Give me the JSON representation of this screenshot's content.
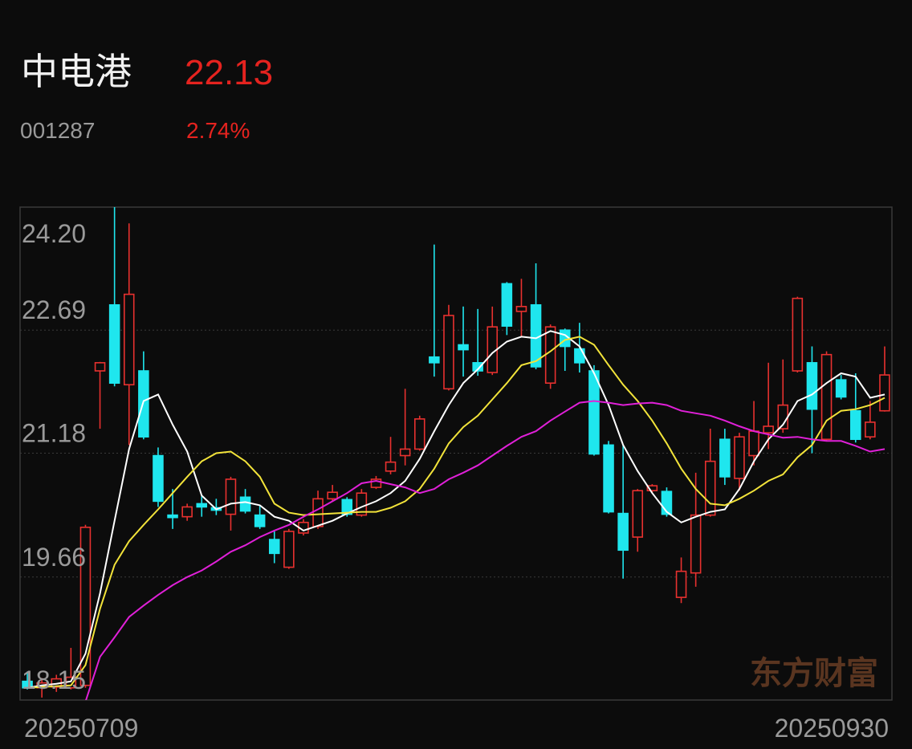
{
  "header": {
    "name": "中电港",
    "price": "22.13",
    "code": "001287",
    "change": "2.74%"
  },
  "watermark": "东方财富",
  "chart_data": {
    "type": "candlestick",
    "categories": [
      "20250709",
      null,
      null,
      null,
      null,
      null,
      null,
      null,
      null,
      null,
      null,
      null,
      null,
      null,
      null,
      null,
      null,
      null,
      null,
      null,
      null,
      null,
      null,
      null,
      null,
      null,
      null,
      null,
      null,
      null,
      null,
      null,
      null,
      null,
      null,
      null,
      null,
      null,
      null,
      null,
      null,
      null,
      null,
      null,
      null,
      null,
      null,
      null,
      null,
      null,
      null,
      null,
      null,
      null,
      null,
      null,
      null,
      null,
      null,
      "20250930"
    ],
    "open": [
      18.38,
      18.3,
      18.31,
      18.3,
      18.33,
      22.19,
      23.0,
      22.02,
      22.19,
      21.15,
      20.42,
      20.4,
      20.56,
      20.51,
      20.43,
      20.64,
      20.42,
      20.12,
      19.78,
      20.2,
      20.28,
      20.62,
      20.61,
      20.42,
      20.76,
      20.96,
      21.15,
      21.23,
      22.36,
      21.97,
      22.51,
      22.29,
      22.17,
      23.26,
      22.92,
      23.0,
      22.04,
      22.69,
      22.46,
      22.19,
      21.28,
      20.44,
      20.15,
      20.72,
      20.71,
      19.41,
      19.71,
      20.42,
      21.35,
      20.87,
      21.15,
      21.43,
      21.48,
      22.19,
      22.29,
      21.35,
      22.08,
      21.7,
      21.38,
      21.7
    ],
    "high": [
      18.5,
      18.42,
      18.46,
      18.79,
      20.3,
      22.3,
      24.2,
      24.0,
      22.43,
      21.25,
      20.74,
      20.56,
      20.67,
      20.62,
      20.89,
      20.74,
      20.54,
      20.22,
      20.25,
      20.37,
      20.72,
      20.79,
      20.64,
      20.74,
      20.9,
      21.38,
      21.97,
      21.64,
      23.74,
      23.0,
      22.98,
      22.95,
      22.98,
      23.28,
      23.32,
      23.51,
      22.76,
      22.71,
      22.78,
      22.26,
      21.33,
      21.28,
      20.74,
      20.8,
      20.76,
      19.9,
      20.94,
      21.48,
      21.48,
      21.43,
      21.82,
      22.29,
      22.33,
      23.1,
      22.49,
      22.43,
      22.14,
      22.16,
      21.82,
      22.49
    ],
    "low": [
      18.28,
      18.18,
      18.25,
      18.28,
      18.3,
      21.48,
      22.0,
      21.28,
      21.35,
      20.52,
      20.25,
      20.35,
      20.4,
      20.42,
      20.23,
      20.44,
      20.25,
      19.83,
      19.76,
      20.17,
      20.25,
      20.59,
      20.4,
      20.4,
      20.74,
      20.92,
      21.03,
      21.21,
      22.12,
      21.95,
      22.12,
      22.13,
      22.14,
      22.63,
      22.61,
      22.21,
      21.97,
      22.19,
      22.17,
      21.15,
      20.44,
      19.64,
      19.97,
      20.69,
      20.4,
      19.34,
      19.54,
      20.4,
      20.79,
      20.72,
      21.03,
      21.23,
      21.43,
      22.17,
      21.18,
      21.33,
      21.84,
      21.31,
      21.35,
      21.69
    ],
    "close": [
      18.3,
      18.36,
      18.41,
      18.43,
      20.27,
      22.29,
      22.04,
      23.13,
      21.38,
      20.59,
      20.39,
      20.52,
      20.52,
      20.48,
      20.86,
      20.47,
      20.28,
      19.95,
      20.22,
      20.33,
      20.62,
      20.7,
      20.43,
      20.69,
      20.86,
      21.07,
      21.23,
      21.6,
      22.29,
      22.87,
      22.45,
      22.19,
      22.73,
      22.74,
      22.98,
      22.24,
      22.73,
      22.49,
      22.29,
      21.17,
      20.46,
      19.99,
      20.72,
      20.78,
      20.43,
      19.73,
      20.42,
      21.08,
      20.89,
      21.38,
      21.45,
      21.51,
      21.77,
      23.08,
      21.72,
      22.39,
      21.87,
      21.35,
      21.56,
      22.14
    ],
    "up_color": "#e8312f",
    "down_color": "#1fe6ee",
    "lines": [
      {
        "color": "#ffffff",
        "values": [
          18.3,
          18.33,
          18.35,
          18.38,
          18.72,
          19.46,
          20.35,
          21.23,
          21.82,
          21.9,
          21.53,
          21.2,
          20.66,
          20.49,
          20.56,
          20.58,
          20.54,
          20.4,
          20.35,
          20.23,
          20.29,
          20.35,
          20.44,
          20.52,
          20.59,
          20.69,
          20.84,
          21.11,
          21.45,
          21.77,
          22.04,
          22.21,
          22.41,
          22.55,
          22.61,
          22.59,
          22.68,
          22.63,
          22.49,
          22.16,
          21.77,
          21.28,
          20.96,
          20.69,
          20.46,
          20.33,
          20.4,
          20.46,
          20.49,
          20.74,
          21.08,
          21.35,
          21.53,
          21.82,
          21.9,
          22.04,
          22.16,
          22.12,
          21.86,
          21.9
        ]
      },
      {
        "color": "#f2e33a",
        "values": [
          18.3,
          18.31,
          18.32,
          18.33,
          18.58,
          19.27,
          19.81,
          20.1,
          20.3,
          20.49,
          20.69,
          20.89,
          21.08,
          21.18,
          21.2,
          21.08,
          20.89,
          20.56,
          20.45,
          20.42,
          20.43,
          20.44,
          20.45,
          20.46,
          20.46,
          20.51,
          20.59,
          20.74,
          20.99,
          21.3,
          21.5,
          21.64,
          21.84,
          22.04,
          22.26,
          22.31,
          22.43,
          22.57,
          22.61,
          22.51,
          22.26,
          22.02,
          21.82,
          21.58,
          21.3,
          20.99,
          20.74,
          20.56,
          20.54,
          20.62,
          20.72,
          20.84,
          20.92,
          21.13,
          21.28,
          21.58,
          21.7,
          21.72,
          21.77,
          21.86
        ]
      },
      {
        "color": "#e020d8",
        "values": [
          null,
          null,
          null,
          null,
          18.13,
          18.68,
          18.92,
          19.17,
          19.31,
          19.44,
          19.56,
          19.66,
          19.74,
          19.85,
          19.97,
          20.05,
          20.15,
          20.23,
          20.3,
          20.4,
          20.49,
          20.59,
          20.69,
          20.81,
          20.84,
          20.8,
          20.76,
          20.69,
          20.74,
          20.86,
          20.94,
          21.03,
          21.15,
          21.27,
          21.38,
          21.45,
          21.58,
          21.69,
          21.8,
          21.82,
          21.8,
          21.77,
          21.79,
          21.8,
          21.77,
          21.7,
          21.67,
          21.64,
          21.58,
          21.51,
          21.45,
          21.41,
          21.37,
          21.38,
          21.35,
          21.33,
          21.33,
          21.27,
          21.2,
          21.23
        ]
      }
    ],
    "ylim": [
      18.15,
      24.2
    ],
    "yticks": [
      {
        "value": 24.2,
        "label": "24.20"
      },
      22.69,
      21.18,
      19.66,
      18.15
    ],
    "grid": true
  }
}
